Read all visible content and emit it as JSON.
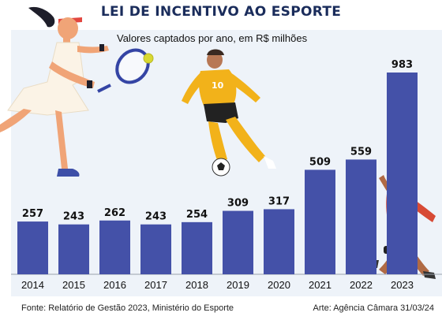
{
  "header": {
    "title": "LEI DE INCENTIVO AO ESPORTE"
  },
  "footer": {
    "source": "Fonte: Relatório de Gestão 2023, Ministério do Esporte",
    "credit": "Arte: Agência Câmara 31/03/24"
  },
  "colors": {
    "bar": "#4451a8",
    "background": "#eef3f9",
    "title": "#1a2c5b"
  },
  "chart_data": {
    "type": "bar",
    "title": "LEI DE INCENTIVO AO ESPORTE",
    "subtitle": "Valores captados por ano, em R$ milhões",
    "categories": [
      "2014",
      "2015",
      "2016",
      "2017",
      "2018",
      "2019",
      "2020",
      "2021",
      "2022",
      "2023"
    ],
    "values": [
      257,
      243,
      262,
      243,
      254,
      309,
      317,
      509,
      559,
      983
    ],
    "data_labels": [
      "257",
      "243",
      "262",
      "243",
      "254",
      "309",
      "317",
      "509",
      "559",
      "983"
    ],
    "xlabel": "",
    "ylabel": "",
    "ylim": [
      0,
      1000
    ],
    "grid": false,
    "legend": "none"
  },
  "illustrations": [
    "tennis-player-icon",
    "soccer-player-icon",
    "volleyball-player-icon"
  ]
}
